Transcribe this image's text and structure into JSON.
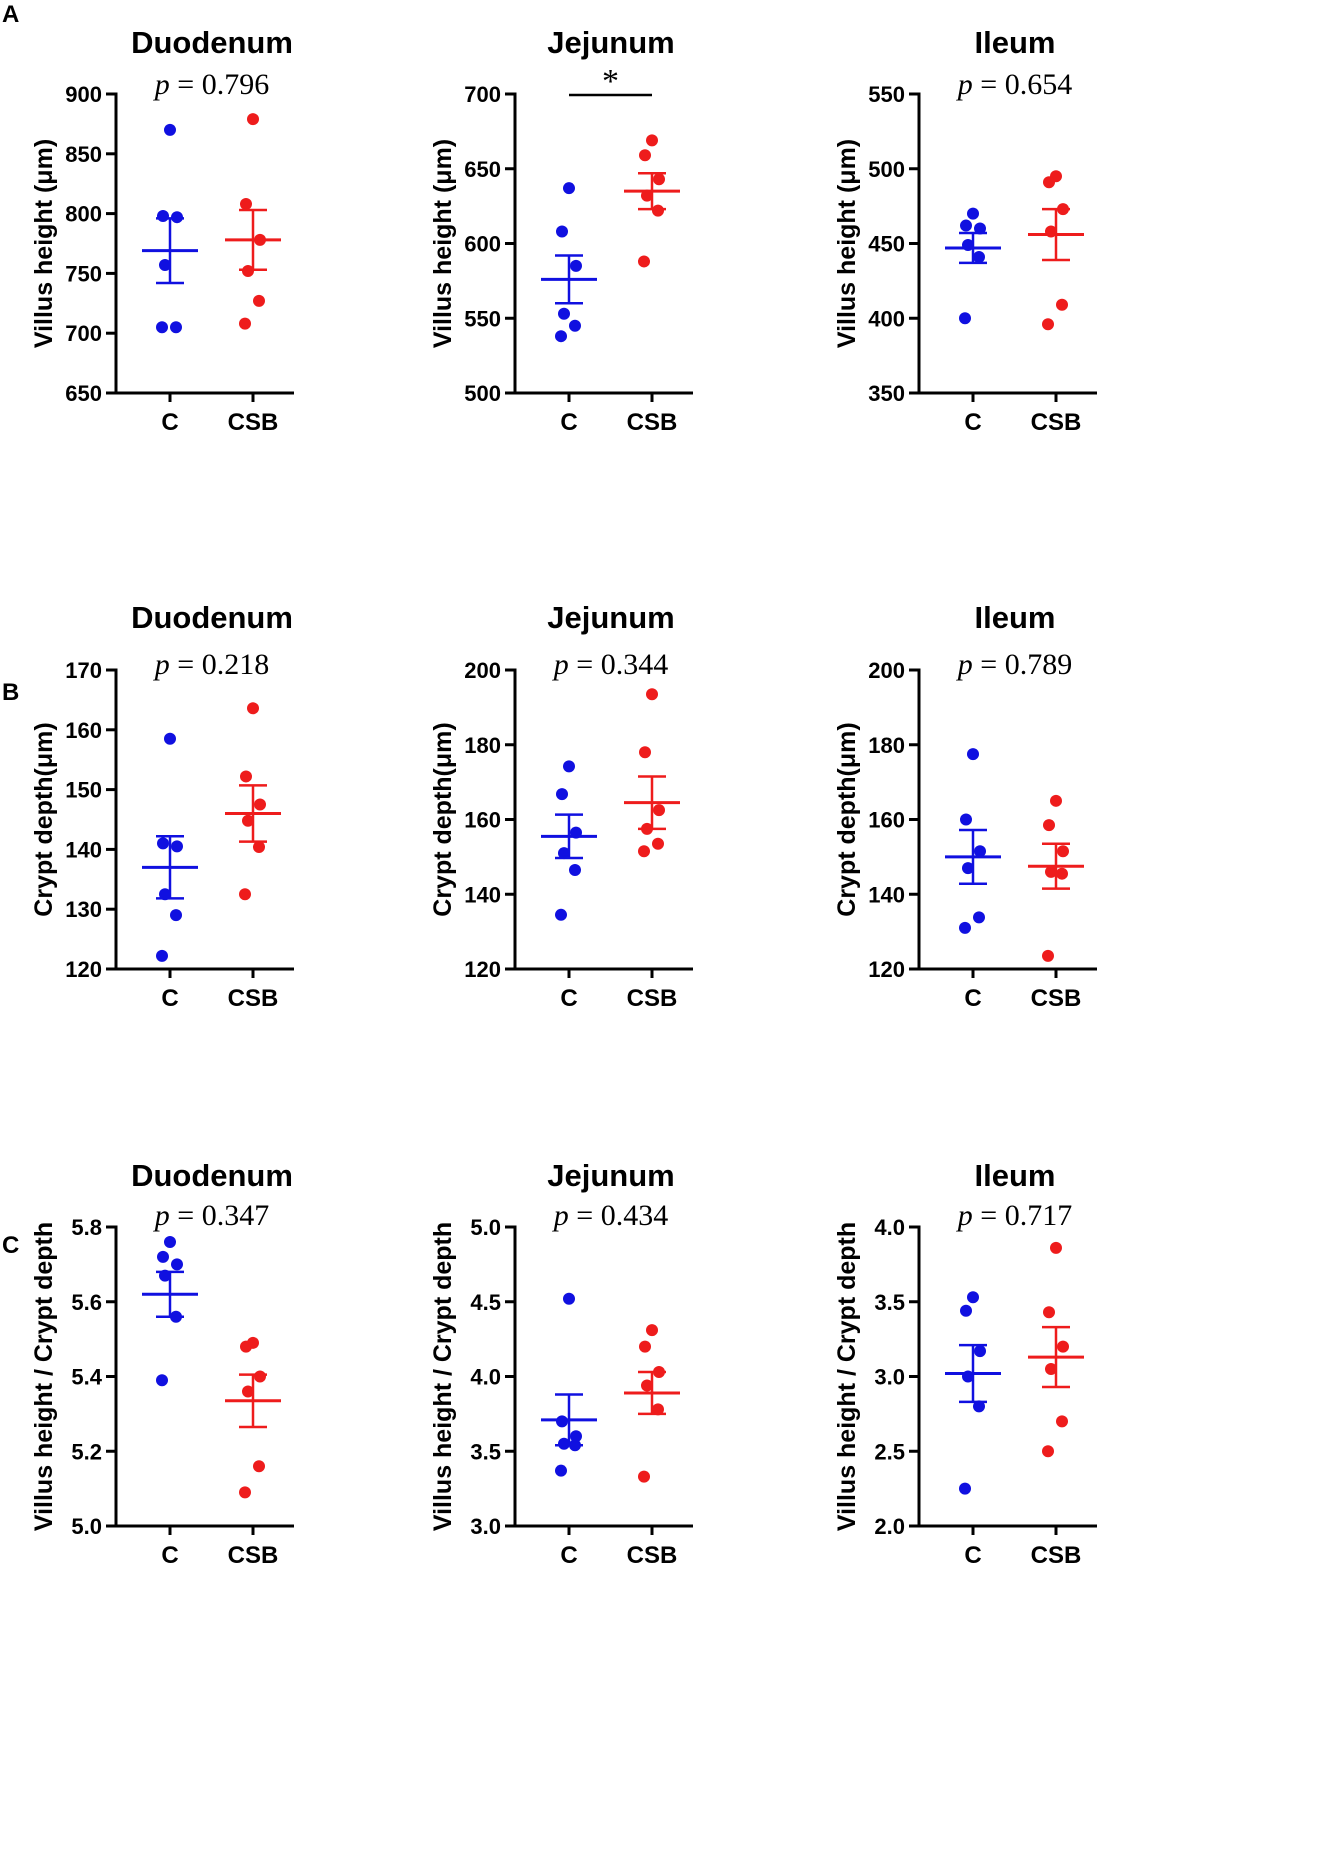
{
  "figure": {
    "panels": [
      {
        "letter": "A"
      },
      {
        "letter": "B"
      },
      {
        "letter": "C"
      }
    ],
    "colors": {
      "C": "#1010e0",
      "CSB": "#ee1c1c",
      "axis": "#000000"
    }
  },
  "chart_data": [
    {
      "type": "scatter",
      "panel": "A",
      "row": 0,
      "col": 0,
      "title": "Duodenum",
      "p_label": "p",
      "p_value": "= 0.796",
      "ylabel": "Villus height (μm)",
      "ylim": [
        650,
        900
      ],
      "yticks": [
        650,
        700,
        750,
        800,
        850,
        900
      ],
      "ytick_labels": [
        "650",
        "700",
        "750",
        "800",
        "850",
        "900"
      ],
      "categories": [
        "C",
        "CSB"
      ],
      "groups": [
        {
          "name": "C",
          "points": [
            870,
            798,
            797,
            757,
            705,
            705
          ],
          "mean": 769,
          "sem": 27
        },
        {
          "name": "CSB",
          "points": [
            879,
            808,
            778,
            752,
            727,
            708
          ],
          "mean": 778,
          "sem": 25
        }
      ]
    },
    {
      "type": "scatter",
      "panel": "A",
      "row": 0,
      "col": 1,
      "title": "Jejunum",
      "significance": "*",
      "ylabel": "Villus height (μm)",
      "ylim": [
        500,
        700
      ],
      "yticks": [
        500,
        550,
        600,
        650,
        700
      ],
      "ytick_labels": [
        "500",
        "550",
        "600",
        "650",
        "700"
      ],
      "categories": [
        "C",
        "CSB"
      ],
      "groups": [
        {
          "name": "C",
          "points": [
            637,
            608,
            585,
            553,
            545,
            538
          ],
          "mean": 576,
          "sem": 16
        },
        {
          "name": "CSB",
          "points": [
            669,
            659,
            643,
            632,
            622,
            588
          ],
          "mean": 635,
          "sem": 12
        }
      ]
    },
    {
      "type": "scatter",
      "panel": "A",
      "row": 0,
      "col": 2,
      "title": "Ileum",
      "p_label": "p",
      "p_value": "= 0.654",
      "ylabel": "Villus height (μm)",
      "ylim": [
        350,
        550
      ],
      "yticks": [
        350,
        400,
        450,
        500,
        550
      ],
      "ytick_labels": [
        "350",
        "400",
        "450",
        "500",
        "550"
      ],
      "categories": [
        "C",
        "CSB"
      ],
      "groups": [
        {
          "name": "C",
          "points": [
            470,
            462,
            460,
            449,
            441,
            400
          ],
          "mean": 447,
          "sem": 10
        },
        {
          "name": "CSB",
          "points": [
            495,
            491,
            473,
            458,
            409,
            396
          ],
          "mean": 456,
          "sem": 17
        }
      ]
    },
    {
      "type": "scatter",
      "panel": "B",
      "row": 1,
      "col": 0,
      "title": "Duodenum",
      "p_label": "p",
      "p_value": "= 0.218",
      "ylabel": "Crypt depth(μm)",
      "ylim": [
        120,
        170
      ],
      "yticks": [
        120,
        130,
        140,
        150,
        160,
        170
      ],
      "ytick_labels": [
        "120",
        "130",
        "140",
        "150",
        "160",
        "170"
      ],
      "categories": [
        "C",
        "CSB"
      ],
      "groups": [
        {
          "name": "C",
          "points": [
            158.5,
            141.0,
            140.5,
            132.5,
            129.0,
            122.2
          ],
          "mean": 137,
          "sem": 5.2
        },
        {
          "name": "CSB",
          "points": [
            163.6,
            152.2,
            147.5,
            144.8,
            140.4,
            132.5
          ],
          "mean": 146,
          "sem": 4.7
        }
      ]
    },
    {
      "type": "scatter",
      "panel": "B",
      "row": 1,
      "col": 1,
      "title": "Jejunum",
      "p_label": "p",
      "p_value": "= 0.344",
      "ylabel": "Crypt depth(μm)",
      "ylim": [
        120,
        200
      ],
      "yticks": [
        120,
        140,
        160,
        180,
        200
      ],
      "ytick_labels": [
        "120",
        "140",
        "160",
        "180",
        "200"
      ],
      "categories": [
        "C",
        "CSB"
      ],
      "groups": [
        {
          "name": "C",
          "points": [
            174.2,
            166.8,
            156.5,
            151.0,
            146.5,
            134.5
          ],
          "mean": 155.5,
          "sem": 5.8
        },
        {
          "name": "CSB",
          "points": [
            193.5,
            178.0,
            162.5,
            157.5,
            153.5,
            151.5
          ],
          "mean": 164.5,
          "sem": 7.0
        }
      ]
    },
    {
      "type": "scatter",
      "panel": "B",
      "row": 1,
      "col": 2,
      "title": "Ileum",
      "p_label": "p",
      "p_value": "= 0.789",
      "ylabel": "Crypt depth(μm)",
      "ylim": [
        120,
        200
      ],
      "yticks": [
        120,
        140,
        160,
        180,
        200
      ],
      "ytick_labels": [
        "120",
        "140",
        "160",
        "180",
        "200"
      ],
      "categories": [
        "C",
        "CSB"
      ],
      "groups": [
        {
          "name": "C",
          "points": [
            177.5,
            160.0,
            151.5,
            147.0,
            133.8,
            131.0
          ],
          "mean": 150,
          "sem": 7.2
        },
        {
          "name": "CSB",
          "points": [
            165.0,
            158.5,
            151.5,
            146.0,
            145.5,
            123.5
          ],
          "mean": 147.5,
          "sem": 6.0
        }
      ]
    },
    {
      "type": "scatter",
      "panel": "C",
      "row": 2,
      "col": 0,
      "title": "Duodenum",
      "p_label": "p",
      "p_value": "= 0.347",
      "ylabel": "Villus height / Crypt depth",
      "ylim": [
        5.0,
        5.8
      ],
      "yticks": [
        5.0,
        5.2,
        5.4,
        5.6,
        5.8
      ],
      "ytick_labels": [
        "5.0",
        "5.2",
        "5.4",
        "5.6",
        "5.8"
      ],
      "categories": [
        "C",
        "CSB"
      ],
      "groups": [
        {
          "name": "C",
          "points": [
            5.76,
            5.72,
            5.7,
            5.67,
            5.56,
            5.39
          ],
          "mean": 5.62,
          "sem": 0.06
        },
        {
          "name": "CSB",
          "points": [
            5.49,
            5.48,
            5.4,
            5.36,
            5.16,
            5.09
          ],
          "mean": 5.335,
          "sem": 0.07
        }
      ]
    },
    {
      "type": "scatter",
      "panel": "C",
      "row": 2,
      "col": 1,
      "title": "Jejunum",
      "p_label": "p",
      "p_value": "= 0.434",
      "ylabel": "Villus height / Crypt depth",
      "ylim": [
        3.0,
        5.0
      ],
      "yticks": [
        3.0,
        3.5,
        4.0,
        4.5,
        5.0
      ],
      "ytick_labels": [
        "3.0",
        "3.5",
        "4.0",
        "4.5",
        "5.0"
      ],
      "categories": [
        "C",
        "CSB"
      ],
      "groups": [
        {
          "name": "C",
          "points": [
            4.52,
            3.7,
            3.6,
            3.55,
            3.54,
            3.37
          ],
          "mean": 3.71,
          "sem": 0.17
        },
        {
          "name": "CSB",
          "points": [
            4.31,
            4.2,
            4.03,
            3.94,
            3.78,
            3.33
          ],
          "mean": 3.89,
          "sem": 0.14
        }
      ]
    },
    {
      "type": "scatter",
      "panel": "C",
      "row": 2,
      "col": 2,
      "title": "Ileum",
      "p_label": "p",
      "p_value": "= 0.717",
      "ylabel": "Villus height / Crypt depth",
      "ylim": [
        2.0,
        4.0
      ],
      "yticks": [
        2.0,
        2.5,
        3.0,
        3.5,
        4.0
      ],
      "ytick_labels": [
        "2.0",
        "2.5",
        "3.0",
        "3.5",
        "4.0"
      ],
      "categories": [
        "C",
        "CSB"
      ],
      "groups": [
        {
          "name": "C",
          "points": [
            3.53,
            3.44,
            3.17,
            3.0,
            2.8,
            2.25
          ],
          "mean": 3.02,
          "sem": 0.19
        },
        {
          "name": "CSB",
          "points": [
            3.86,
            3.43,
            3.2,
            3.05,
            2.7,
            2.5
          ],
          "mean": 3.13,
          "sem": 0.2
        }
      ]
    }
  ]
}
